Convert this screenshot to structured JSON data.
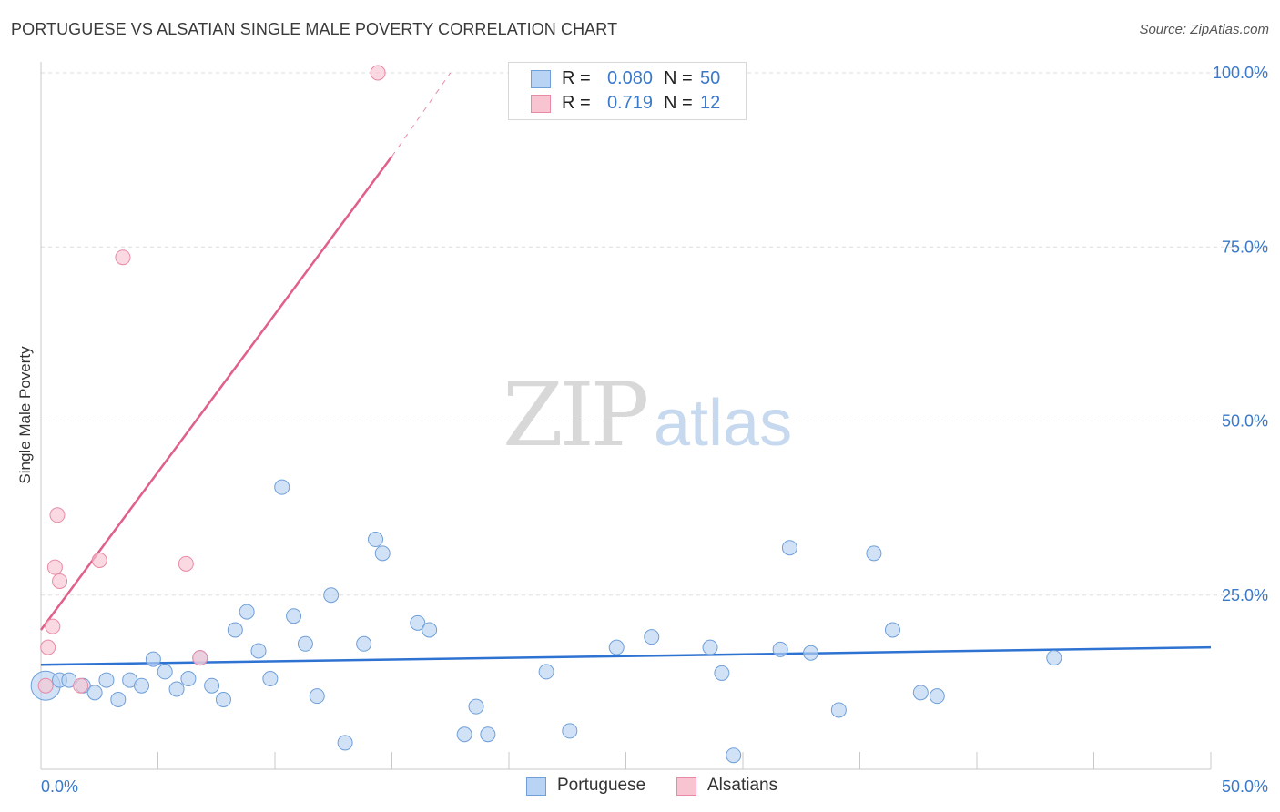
{
  "title": "PORTUGUESE VS ALSATIAN SINGLE MALE POVERTY CORRELATION CHART",
  "source": "Source: ZipAtlas.com",
  "watermark": {
    "zip": "ZIP",
    "atlas": "atlas"
  },
  "legend": {
    "portuguese": {
      "r_label": "R =",
      "r_value": "0.080",
      "n_label": "N =",
      "n_value": "50"
    },
    "alsatians": {
      "r_label": "R =",
      "r_value": "0.719",
      "n_label": "N =",
      "n_value": "12"
    }
  },
  "bottom_legend": {
    "portuguese": "Portuguese",
    "alsatians": "Alsatians"
  },
  "colors": {
    "portuguese_fill": "#b8d3f3",
    "portuguese_stroke": "#6f9fd8",
    "portuguese_line": "#2e72d2",
    "alsatians_fill": "#f8c4d2",
    "alsatians_stroke": "#e88aa5",
    "alsatians_line": "#e0608a",
    "tick_label": "#3a78c9",
    "grid": "#dddddd"
  },
  "chart_data": {
    "type": "scatter",
    "title": "PORTUGUESE VS ALSATIAN SINGLE MALE POVERTY CORRELATION CHART",
    "xlabel": "",
    "ylabel": "Single Male Poverty",
    "xlim": [
      0,
      50
    ],
    "ylim": [
      0,
      100
    ],
    "x_tick_labels": [
      "0.0%",
      "50.0%"
    ],
    "y_tick_labels": [
      "25.0%",
      "50.0%",
      "75.0%",
      "100.0%"
    ],
    "y_ticks": [
      25,
      50,
      75,
      100
    ],
    "series": [
      {
        "name": "Portuguese",
        "points": [
          [
            0.2,
            12.0
          ],
          [
            0.8,
            12.8
          ],
          [
            1.2,
            12.8
          ],
          [
            1.8,
            12.0
          ],
          [
            2.3,
            11.0
          ],
          [
            2.8,
            12.8
          ],
          [
            3.3,
            10.0
          ],
          [
            3.8,
            12.8
          ],
          [
            4.3,
            12.0
          ],
          [
            4.8,
            15.8
          ],
          [
            5.3,
            14.0
          ],
          [
            5.8,
            11.5
          ],
          [
            6.3,
            13.0
          ],
          [
            6.8,
            16.0
          ],
          [
            7.3,
            12.0
          ],
          [
            7.8,
            10.0
          ],
          [
            8.3,
            20.0
          ],
          [
            8.8,
            22.6
          ],
          [
            9.3,
            17.0
          ],
          [
            9.8,
            13.0
          ],
          [
            10.3,
            40.5
          ],
          [
            10.8,
            22.0
          ],
          [
            11.3,
            18.0
          ],
          [
            11.8,
            10.5
          ],
          [
            12.4,
            25.0
          ],
          [
            13.0,
            3.8
          ],
          [
            13.8,
            18.0
          ],
          [
            14.3,
            33.0
          ],
          [
            14.6,
            31.0
          ],
          [
            16.1,
            21.0
          ],
          [
            16.6,
            20.0
          ],
          [
            18.1,
            5.0
          ],
          [
            18.6,
            9.0
          ],
          [
            19.1,
            5.0
          ],
          [
            21.6,
            14.0
          ],
          [
            22.6,
            5.5
          ],
          [
            24.6,
            17.5
          ],
          [
            26.1,
            19.0
          ],
          [
            28.6,
            17.5
          ],
          [
            29.1,
            13.8
          ],
          [
            29.6,
            2.0
          ],
          [
            31.6,
            17.2
          ],
          [
            32.0,
            31.8
          ],
          [
            32.9,
            16.7
          ],
          [
            34.1,
            8.5
          ],
          [
            35.6,
            31.0
          ],
          [
            36.4,
            20.0
          ],
          [
            37.6,
            11.0
          ],
          [
            38.3,
            10.5
          ],
          [
            43.3,
            16.0
          ]
        ],
        "trend": {
          "x": [
            0,
            50
          ],
          "y": [
            15.0,
            17.5
          ]
        }
      },
      {
        "name": "Alsatians",
        "points": [
          [
            0.2,
            12.0
          ],
          [
            0.3,
            17.5
          ],
          [
            0.5,
            20.5
          ],
          [
            0.6,
            29.0
          ],
          [
            0.7,
            36.5
          ],
          [
            0.8,
            27.0
          ],
          [
            1.7,
            12.0
          ],
          [
            2.5,
            30.0
          ],
          [
            3.5,
            73.5
          ],
          [
            6.2,
            29.5
          ],
          [
            6.8,
            16.0
          ],
          [
            14.4,
            100.0
          ]
        ],
        "trend": {
          "x": [
            0,
            15
          ],
          "y": [
            20.0,
            88.0
          ],
          "dashed_to": {
            "x": 17.5,
            "y": 100.0
          }
        }
      }
    ]
  }
}
